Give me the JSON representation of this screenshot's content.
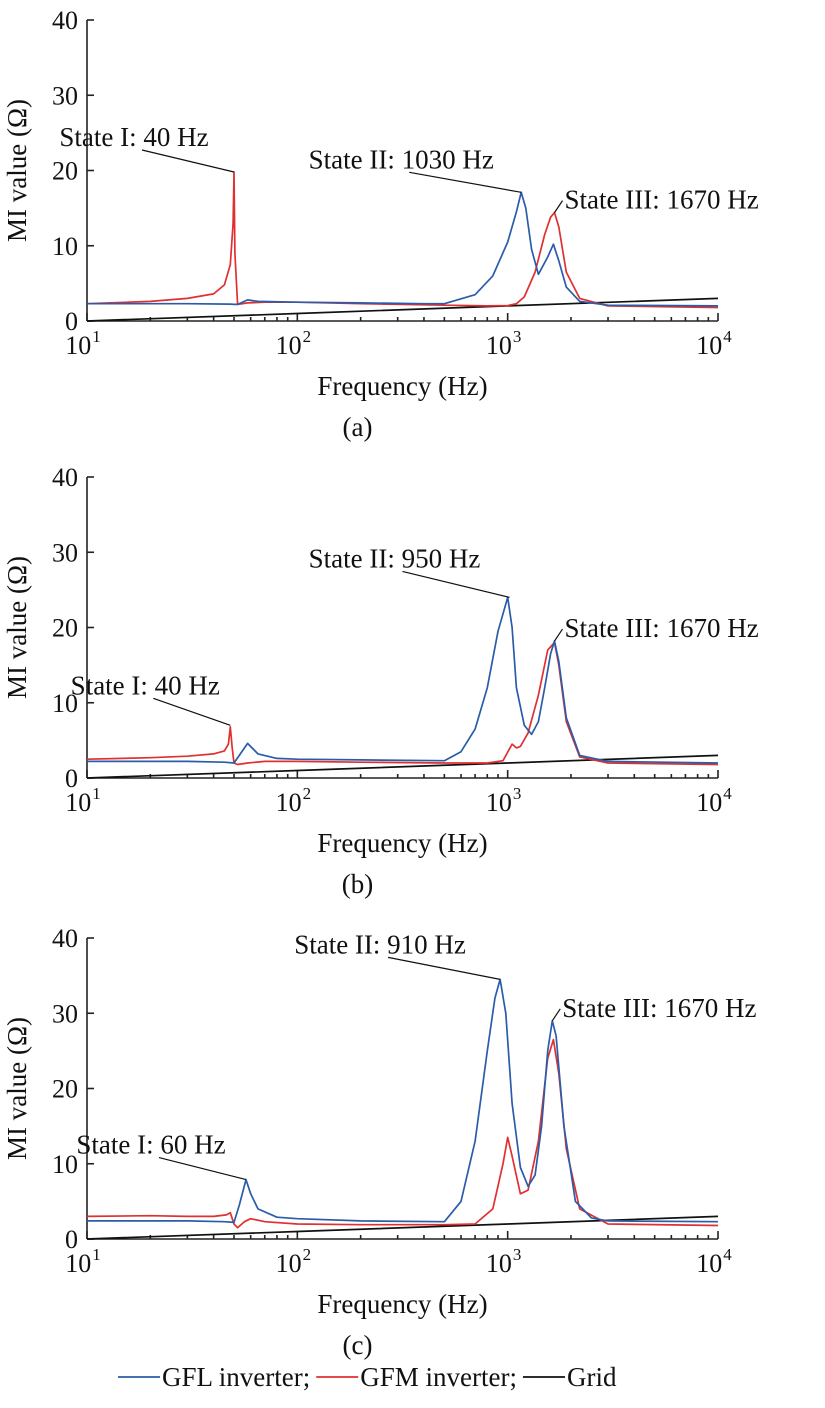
{
  "colors": {
    "gfl": "#2a5caa",
    "gfm": "#e03030",
    "grid": "#111111"
  },
  "legend": [
    {
      "key": "gfl",
      "label": "GFL inverter;"
    },
    {
      "key": "gfm",
      "label": "GFM inverter;"
    },
    {
      "key": "grid",
      "label": "Grid"
    }
  ],
  "chart_data": [
    {
      "type": "line",
      "caption": "(a)",
      "xlabel": "Frequency (Hz)",
      "ylabel": "MI value (Ω)",
      "xscale": "log",
      "xlim": [
        10,
        10000
      ],
      "ylim": [
        0,
        40
      ],
      "yticks": [
        "0",
        "10",
        "20",
        "30",
        "40"
      ],
      "xticks": [
        {
          "base": "10",
          "exp": "1"
        },
        {
          "base": "10",
          "exp": "2"
        },
        {
          "base": "10",
          "exp": "3"
        },
        {
          "base": "10",
          "exp": "4"
        }
      ],
      "annotations": [
        {
          "label": "State I: 40 Hz",
          "x": 50,
          "y": 19.8
        },
        {
          "label": "State II: 1030 Hz",
          "x": 1160,
          "y": 17.1
        },
        {
          "label": "State III: 1670 Hz",
          "x": 1670,
          "y": 14.4
        }
      ],
      "series": [
        {
          "name": "GFL inverter",
          "key": "gfl",
          "x": [
            10,
            30,
            48,
            50,
            52,
            58,
            65,
            100,
            200,
            400,
            500,
            700,
            850,
            1000,
            1100,
            1160,
            1220,
            1300,
            1400,
            1550,
            1650,
            1750,
            1900,
            2200,
            3000,
            10000
          ],
          "y": [
            2.3,
            2.3,
            2.25,
            2.2,
            2.2,
            2.8,
            2.6,
            2.5,
            2.4,
            2.3,
            2.3,
            3.5,
            6.0,
            10.5,
            14.5,
            17.1,
            15.0,
            9.5,
            6.2,
            8.5,
            10.2,
            8.0,
            4.5,
            2.6,
            2.1,
            2.0
          ]
        },
        {
          "name": "GFM inverter",
          "key": "gfm",
          "x": [
            10,
            20,
            30,
            40,
            45,
            48,
            49.5,
            50,
            50.5,
            52,
            58,
            70,
            100,
            200,
            500,
            800,
            1000,
            1100,
            1200,
            1350,
            1500,
            1600,
            1670,
            1750,
            1900,
            2200,
            3000,
            10000
          ],
          "y": [
            2.3,
            2.6,
            3.0,
            3.6,
            4.8,
            7.5,
            13.0,
            19.8,
            9.0,
            2.2,
            2.4,
            2.5,
            2.5,
            2.3,
            2.1,
            2.0,
            2.05,
            2.3,
            3.2,
            6.5,
            11.5,
            13.8,
            14.4,
            12.5,
            6.5,
            3.0,
            2.0,
            1.8
          ]
        },
        {
          "name": "Grid",
          "key": "grid",
          "x": [
            10,
            100,
            1000,
            10000
          ],
          "y": [
            0,
            1.0,
            2.0,
            3.0
          ]
        }
      ]
    },
    {
      "type": "line",
      "caption": "(b)",
      "xlabel": "Frequency (Hz)",
      "ylabel": "MI value (Ω)",
      "xscale": "log",
      "xlim": [
        10,
        10000
      ],
      "ylim": [
        0,
        40
      ],
      "yticks": [
        "0",
        "10",
        "20",
        "30",
        "40"
      ],
      "xticks": [
        {
          "base": "10",
          "exp": "1"
        },
        {
          "base": "10",
          "exp": "2"
        },
        {
          "base": "10",
          "exp": "3"
        },
        {
          "base": "10",
          "exp": "4"
        }
      ],
      "annotations": [
        {
          "label": "State I: 40 Hz",
          "x": 48,
          "y": 7.0
        },
        {
          "label": "State II: 950 Hz",
          "x": 1020,
          "y": 24.0
        },
        {
          "label": "State III: 1670 Hz",
          "x": 1670,
          "y": 18.2
        }
      ],
      "series": [
        {
          "name": "GFL inverter",
          "key": "gfl",
          "x": [
            10,
            30,
            45,
            50,
            53,
            58,
            65,
            80,
            100,
            200,
            500,
            600,
            700,
            800,
            900,
            1000,
            1050,
            1100,
            1200,
            1300,
            1400,
            1500,
            1600,
            1670,
            1750,
            1900,
            2200,
            3000,
            10000
          ],
          "y": [
            2.2,
            2.2,
            2.1,
            2.0,
            3.0,
            4.6,
            3.2,
            2.6,
            2.5,
            2.4,
            2.3,
            3.5,
            6.5,
            12.0,
            19.5,
            24.0,
            20.0,
            12.0,
            7.0,
            5.8,
            7.5,
            12.0,
            16.5,
            18.2,
            15.5,
            8.0,
            3.0,
            2.2,
            2.0
          ]
        },
        {
          "name": "GFM inverter",
          "key": "gfm",
          "x": [
            10,
            20,
            30,
            40,
            45,
            47,
            48,
            49,
            50,
            52,
            58,
            70,
            100,
            200,
            500,
            800,
            950,
            1050,
            1100,
            1150,
            1250,
            1400,
            1550,
            1670,
            1750,
            1900,
            2200,
            3000,
            10000
          ],
          "y": [
            2.5,
            2.7,
            2.9,
            3.2,
            3.6,
            4.5,
            6.8,
            4.0,
            2.0,
            1.8,
            2.0,
            2.2,
            2.2,
            2.1,
            2.0,
            2.0,
            2.3,
            4.5,
            4.0,
            4.2,
            6.0,
            11.0,
            17.0,
            18.0,
            15.0,
            7.5,
            2.8,
            2.0,
            1.8
          ]
        },
        {
          "name": "Grid",
          "key": "grid",
          "x": [
            10,
            100,
            1000,
            10000
          ],
          "y": [
            0,
            1.0,
            2.0,
            3.0
          ]
        }
      ]
    },
    {
      "type": "line",
      "caption": "(c)",
      "xlabel": "Frequency (Hz)",
      "ylabel": "MI value (Ω)",
      "xscale": "log",
      "xlim": [
        10,
        10000
      ],
      "ylim": [
        0,
        40
      ],
      "yticks": [
        "0",
        "10",
        "20",
        "30",
        "40"
      ],
      "xticks": [
        {
          "base": "10",
          "exp": "1"
        },
        {
          "base": "10",
          "exp": "2"
        },
        {
          "base": "10",
          "exp": "3"
        },
        {
          "base": "10",
          "exp": "4"
        }
      ],
      "annotations": [
        {
          "label": "State I: 60 Hz",
          "x": 57,
          "y": 7.9
        },
        {
          "label": "State II: 910 Hz",
          "x": 920,
          "y": 34.5
        },
        {
          "label": "State III: 1670 Hz",
          "x": 1630,
          "y": 29.0
        }
      ],
      "series": [
        {
          "name": "GFL inverter",
          "key": "gfl",
          "x": [
            10,
            30,
            45,
            50,
            53,
            57,
            60,
            65,
            80,
            100,
            200,
            500,
            600,
            700,
            800,
            870,
            920,
            980,
            1050,
            1150,
            1250,
            1350,
            1450,
            1550,
            1630,
            1700,
            1850,
            2100,
            2500,
            3000,
            10000
          ],
          "y": [
            2.4,
            2.4,
            2.3,
            2.2,
            4.5,
            7.9,
            6.0,
            4.0,
            2.9,
            2.7,
            2.4,
            2.3,
            5.0,
            13.0,
            25.0,
            32.0,
            34.5,
            30.0,
            18.0,
            9.5,
            7.0,
            8.5,
            15.0,
            25.0,
            29.0,
            27.0,
            15.0,
            5.0,
            2.8,
            2.4,
            2.3
          ]
        },
        {
          "name": "GFM inverter",
          "key": "gfm",
          "x": [
            10,
            20,
            30,
            40,
            46,
            48,
            50,
            52,
            56,
            60,
            70,
            100,
            200,
            500,
            700,
            850,
            950,
            1000,
            1050,
            1150,
            1250,
            1400,
            1550,
            1650,
            1750,
            1900,
            2200,
            3000,
            10000
          ],
          "y": [
            3.0,
            3.1,
            3.0,
            3.0,
            3.2,
            3.5,
            2.0,
            1.5,
            2.3,
            2.7,
            2.3,
            2.0,
            1.9,
            1.9,
            2.0,
            4.0,
            10.0,
            13.5,
            11.0,
            6.0,
            6.5,
            13.0,
            24.0,
            26.5,
            22.0,
            12.0,
            4.0,
            2.0,
            1.8
          ]
        },
        {
          "name": "Grid",
          "key": "grid",
          "x": [
            10,
            100,
            1000,
            10000
          ],
          "y": [
            0,
            1.0,
            2.0,
            3.0
          ]
        }
      ]
    }
  ]
}
